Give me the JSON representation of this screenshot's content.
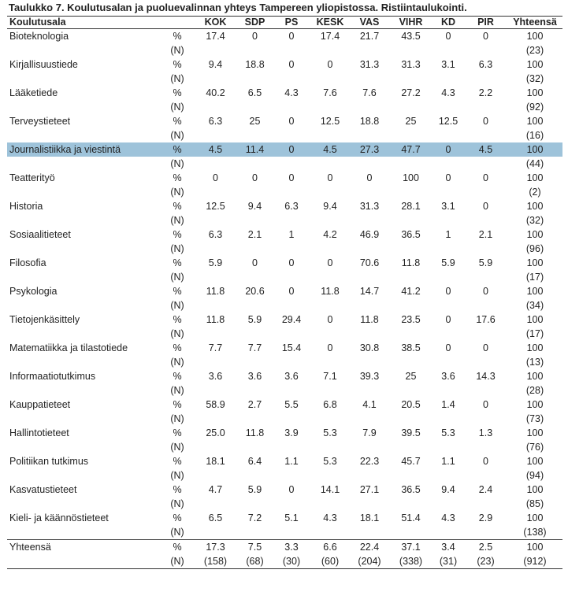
{
  "title": "Taulukko 7. Koulutusalan ja puoluevalinnan yhteys Tampereen yliopistossa. Ristiintaulukointi.",
  "headers": [
    "Koulutusala",
    "",
    "KOK",
    "SDP",
    "PS",
    "KESK",
    "VAS",
    "VIHR",
    "KD",
    "PIR",
    "Yhteensä"
  ],
  "pct_unit": "%",
  "n_unit": "(N)",
  "rows": [
    {
      "field": "Bioteknologia",
      "pct": [
        "17.4",
        "0",
        "0",
        "17.4",
        "21.7",
        "43.5",
        "0",
        "0",
        "100"
      ],
      "n": [
        "",
        "",
        "",
        "",
        "",
        "",
        "",
        "",
        "(23)"
      ]
    },
    {
      "field": "Kirjallisuustiede",
      "pct": [
        "9.4",
        "18.8",
        "0",
        "0",
        "31.3",
        "31.3",
        "3.1",
        "6.3",
        "100"
      ],
      "n": [
        "",
        "",
        "",
        "",
        "",
        "",
        "",
        "",
        "(32)"
      ]
    },
    {
      "field": "Lääketiede",
      "pct": [
        "40.2",
        "6.5",
        "4.3",
        "7.6",
        "7.6",
        "27.2",
        "4.3",
        "2.2",
        "100"
      ],
      "n": [
        "",
        "",
        "",
        "",
        "",
        "",
        "",
        "",
        "(92)"
      ]
    },
    {
      "field": "Terveystieteet",
      "pct": [
        "6.3",
        "25",
        "0",
        "12.5",
        "18.8",
        "25",
        "12.5",
        "0",
        "100"
      ],
      "n": [
        "",
        "",
        "",
        "",
        "",
        "",
        "",
        "",
        "(16)"
      ]
    },
    {
      "field": "Journalistiikka ja viestintä",
      "pct": [
        "4.5",
        "11.4",
        "0",
        "4.5",
        "27.3",
        "47.7",
        "0",
        "4.5",
        "100"
      ],
      "n": [
        "",
        "",
        "",
        "",
        "",
        "",
        "",
        "",
        "(44)"
      ],
      "highlight": true
    },
    {
      "field": "Teatterityö",
      "pct": [
        "0",
        "0",
        "0",
        "0",
        "0",
        "100",
        "0",
        "0",
        "100"
      ],
      "n": [
        "",
        "",
        "",
        "",
        "",
        "",
        "",
        "",
        "(2)"
      ]
    },
    {
      "field": "Historia",
      "pct": [
        "12.5",
        "9.4",
        "6.3",
        "9.4",
        "31.3",
        "28.1",
        "3.1",
        "0",
        "100"
      ],
      "n": [
        "",
        "",
        "",
        "",
        "",
        "",
        "",
        "",
        "(32)"
      ]
    },
    {
      "field": "Sosiaalitieteet",
      "pct": [
        "6.3",
        "2.1",
        "1",
        "4.2",
        "46.9",
        "36.5",
        "1",
        "2.1",
        "100"
      ],
      "n": [
        "",
        "",
        "",
        "",
        "",
        "",
        "",
        "",
        "(96)"
      ]
    },
    {
      "field": "Filosofia",
      "pct": [
        "5.9",
        "0",
        "0",
        "0",
        "70.6",
        "11.8",
        "5.9",
        "5.9",
        "100"
      ],
      "n": [
        "",
        "",
        "",
        "",
        "",
        "",
        "",
        "",
        "(17)"
      ]
    },
    {
      "field": "Psykologia",
      "pct": [
        "11.8",
        "20.6",
        "0",
        "11.8",
        "14.7",
        "41.2",
        "0",
        "0",
        "100"
      ],
      "n": [
        "",
        "",
        "",
        "",
        "",
        "",
        "",
        "",
        "(34)"
      ]
    },
    {
      "field": "Tietojenkäsittely",
      "pct": [
        "11.8",
        "5.9",
        "29.4",
        "0",
        "11.8",
        "23.5",
        "0",
        "17.6",
        "100"
      ],
      "n": [
        "",
        "",
        "",
        "",
        "",
        "",
        "",
        "",
        "(17)"
      ]
    },
    {
      "field": "Matematiikka ja tilastotiede",
      "pct": [
        "7.7",
        "7.7",
        "15.4",
        "0",
        "30.8",
        "38.5",
        "0",
        "0",
        "100"
      ],
      "n": [
        "",
        "",
        "",
        "",
        "",
        "",
        "",
        "",
        "(13)"
      ]
    },
    {
      "field": "Informaatiotutkimus",
      "pct": [
        "3.6",
        "3.6",
        "3.6",
        "7.1",
        "39.3",
        "25",
        "3.6",
        "14.3",
        "100"
      ],
      "n": [
        "",
        "",
        "",
        "",
        "",
        "",
        "",
        "",
        "(28)"
      ]
    },
    {
      "field": "Kauppatieteet",
      "pct": [
        "58.9",
        "2.7",
        "5.5",
        "6.8",
        "4.1",
        "20.5",
        "1.4",
        "0",
        "100"
      ],
      "n": [
        "",
        "",
        "",
        "",
        "",
        "",
        "",
        "",
        "(73)"
      ]
    },
    {
      "field": "Hallintotieteet",
      "pct": [
        "25.0",
        "11.8",
        "3.9",
        "5.3",
        "7.9",
        "39.5",
        "5.3",
        "1.3",
        "100"
      ],
      "n": [
        "",
        "",
        "",
        "",
        "",
        "",
        "",
        "",
        "(76)"
      ]
    },
    {
      "field": "Politiikan tutkimus",
      "pct": [
        "18.1",
        "6.4",
        "1.1",
        "5.3",
        "22.3",
        "45.7",
        "1.1",
        "0",
        "100"
      ],
      "n": [
        "",
        "",
        "",
        "",
        "",
        "",
        "",
        "",
        "(94)"
      ]
    },
    {
      "field": "Kasvatustieteet",
      "pct": [
        "4.7",
        "5.9",
        "0",
        "14.1",
        "27.1",
        "36.5",
        "9.4",
        "2.4",
        "100"
      ],
      "n": [
        "",
        "",
        "",
        "",
        "",
        "",
        "",
        "",
        "(85)"
      ]
    },
    {
      "field": "Kieli- ja käännöstieteet",
      "pct": [
        "6.5",
        "7.2",
        "5.1",
        "4.3",
        "18.1",
        "51.4",
        "4.3",
        "2.9",
        "100"
      ],
      "n": [
        "",
        "",
        "",
        "",
        "",
        "",
        "",
        "",
        "(138)"
      ]
    },
    {
      "field": "Yhteensä",
      "pct": [
        "17.3",
        "7.5",
        "3.3",
        "6.6",
        "22.4",
        "37.1",
        "3.4",
        "2.5",
        "100"
      ],
      "n": [
        "(158)",
        "(68)",
        "(30)",
        "(60)",
        "(204)",
        "(338)",
        "(31)",
        "(23)",
        "(912)"
      ],
      "total": true
    }
  ]
}
